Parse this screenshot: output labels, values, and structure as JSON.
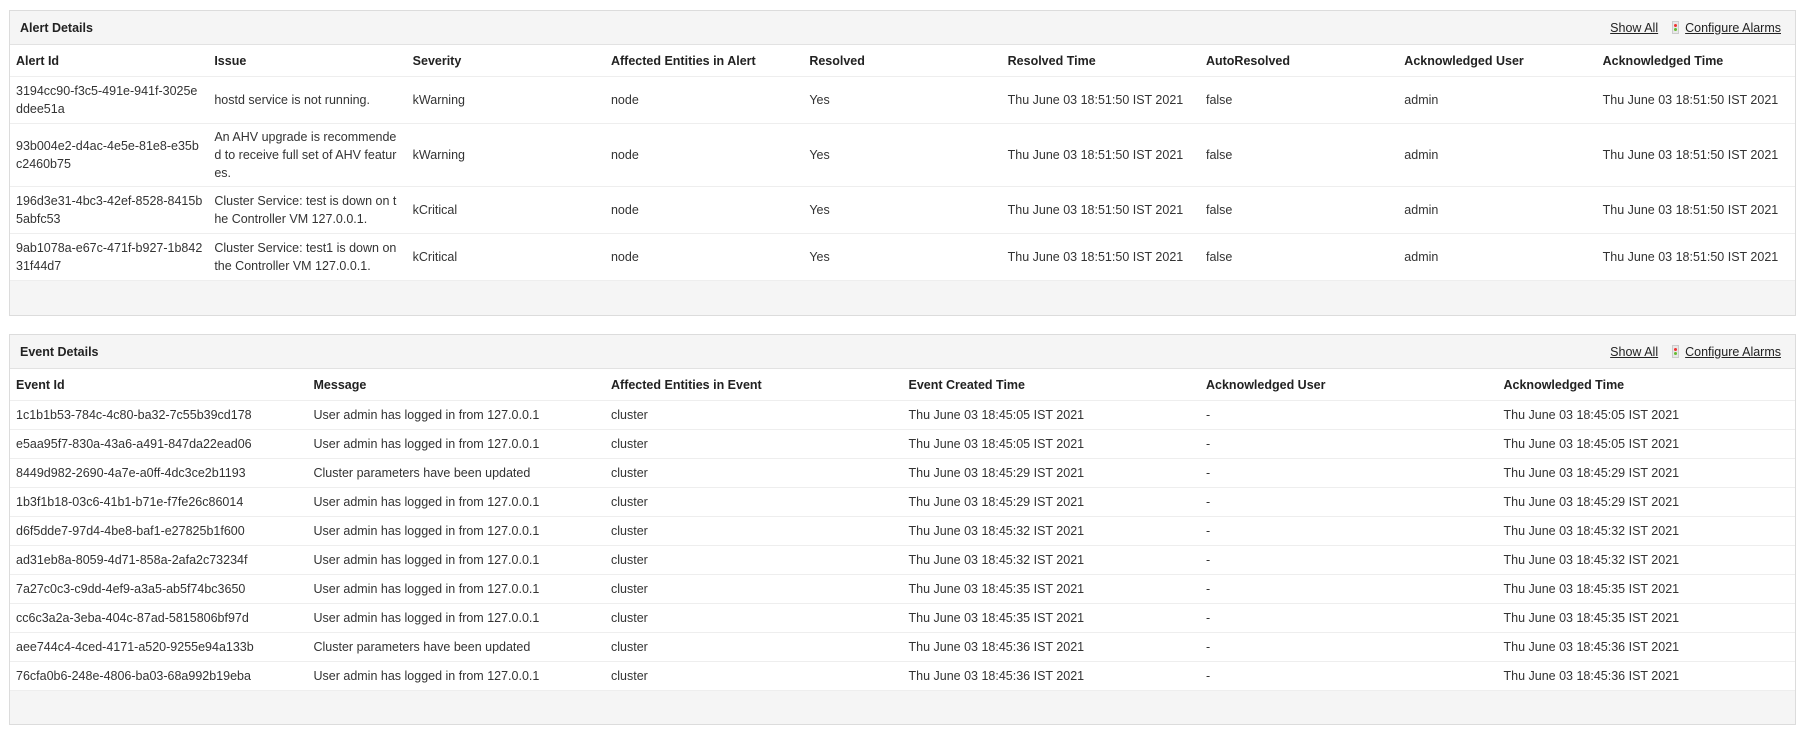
{
  "alerts": {
    "title": "Alert Details",
    "show_all": "Show All",
    "configure_alarms": "Configure Alarms",
    "columns": [
      "Alert Id",
      "Issue",
      "Severity",
      "Affected Entities in Alert",
      "Resolved",
      "Resolved Time",
      "AutoResolved",
      "Acknowledged User",
      "Acknowledged Time"
    ],
    "rows": [
      [
        "3194cc90-f3c5-491e-941f-3025eddee51a",
        "hostd service is not running.",
        "kWarning",
        "node",
        "Yes",
        "Thu June 03 18:51:50 IST 2021",
        "false",
        "admin",
        "Thu June 03 18:51:50 IST 2021"
      ],
      [
        "93b004e2-d4ac-4e5e-81e8-e35bc2460b75",
        "An AHV upgrade is recommended to receive full set of AHV features.",
        "kWarning",
        "node",
        "Yes",
        "Thu June 03 18:51:50 IST 2021",
        "false",
        "admin",
        "Thu June 03 18:51:50 IST 2021"
      ],
      [
        "196d3e31-4bc3-42ef-8528-8415b5abfc53",
        "Cluster Service: test is down on the Controller VM 127.0.0.1.",
        "kCritical",
        "node",
        "Yes",
        "Thu June 03 18:51:50 IST 2021",
        "false",
        "admin",
        "Thu June 03 18:51:50 IST 2021"
      ],
      [
        "9ab1078a-e67c-471f-b927-1b84231f44d7",
        "Cluster Service: test1 is down on the Controller VM 127.0.0.1.",
        "kCritical",
        "node",
        "Yes",
        "Thu June 03 18:51:50 IST 2021",
        "false",
        "admin",
        "Thu June 03 18:51:50 IST 2021"
      ]
    ]
  },
  "events": {
    "title": "Event Details",
    "show_all": "Show All",
    "configure_alarms": "Configure Alarms",
    "columns": [
      "Event Id",
      "Message",
      "Affected Entities in Event",
      "Event Created Time",
      "Acknowledged User",
      "Acknowledged Time"
    ],
    "rows": [
      [
        "1c1b1b53-784c-4c80-ba32-7c55b39cd178",
        "User admin has logged in from 127.0.0.1",
        "cluster",
        "Thu June 03 18:45:05 IST 2021",
        "-",
        "Thu June 03 18:45:05 IST 2021"
      ],
      [
        "e5aa95f7-830a-43a6-a491-847da22ead06",
        "User admin has logged in from 127.0.0.1",
        "cluster",
        "Thu June 03 18:45:05 IST 2021",
        "-",
        "Thu June 03 18:45:05 IST 2021"
      ],
      [
        "8449d982-2690-4a7e-a0ff-4dc3ce2b1193",
        "Cluster parameters have been updated",
        "cluster",
        "Thu June 03 18:45:29 IST 2021",
        "-",
        "Thu June 03 18:45:29 IST 2021"
      ],
      [
        "1b3f1b18-03c6-41b1-b71e-f7fe26c86014",
        "User admin has logged in from 127.0.0.1",
        "cluster",
        "Thu June 03 18:45:29 IST 2021",
        "-",
        "Thu June 03 18:45:29 IST 2021"
      ],
      [
        "d6f5dde7-97d4-4be8-baf1-e27825b1f600",
        "User admin has logged in from 127.0.0.1",
        "cluster",
        "Thu June 03 18:45:32 IST 2021",
        "-",
        "Thu June 03 18:45:32 IST 2021"
      ],
      [
        "ad31eb8a-8059-4d71-858a-2afa2c73234f",
        "User admin has logged in from 127.0.0.1",
        "cluster",
        "Thu June 03 18:45:32 IST 2021",
        "-",
        "Thu June 03 18:45:32 IST 2021"
      ],
      [
        "7a27c0c3-c9dd-4ef9-a3a5-ab5f74bc3650",
        "User admin has logged in from 127.0.0.1",
        "cluster",
        "Thu June 03 18:45:35 IST 2021",
        "-",
        "Thu June 03 18:45:35 IST 2021"
      ],
      [
        "cc6c3a2a-3eba-404c-87ad-5815806bf97d",
        "User admin has logged in from 127.0.0.1",
        "cluster",
        "Thu June 03 18:45:35 IST 2021",
        "-",
        "Thu June 03 18:45:35 IST 2021"
      ],
      [
        "aee744c4-4ced-4171-a520-9255e94a133b",
        "Cluster parameters have been updated",
        "cluster",
        "Thu June 03 18:45:36 IST 2021",
        "-",
        "Thu June 03 18:45:36 IST 2021"
      ],
      [
        "76cfa0b6-248e-4806-ba03-68a992b19eba",
        "User admin has logged in from 127.0.0.1",
        "cluster",
        "Thu June 03 18:45:36 IST 2021",
        "-",
        "Thu June 03 18:45:36 IST 2021"
      ]
    ]
  }
}
